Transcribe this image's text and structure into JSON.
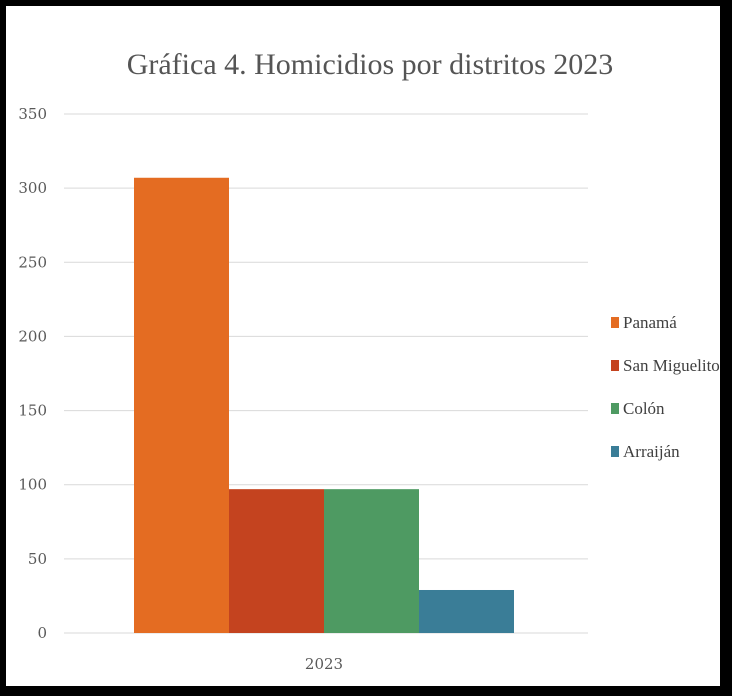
{
  "chart_data": {
    "type": "bar",
    "title": "Gráfica 4. Homicidios por distritos 2023",
    "categories": [
      "2023"
    ],
    "series": [
      {
        "name": "Panamá",
        "values": [
          307
        ],
        "color": "#e46c22"
      },
      {
        "name": "San Miguelito",
        "values": [
          97
        ],
        "color": "#c4431f"
      },
      {
        "name": "Colón",
        "values": [
          97
        ],
        "color": "#4e9a62"
      },
      {
        "name": "Arraiján",
        "values": [
          29
        ],
        "color": "#3a7d97"
      }
    ],
    "ylim": [
      0,
      350
    ],
    "yticks": [
      0,
      50,
      100,
      150,
      200,
      250,
      300,
      350
    ],
    "grid": true,
    "legend_position": "right",
    "xlabel": "",
    "ylabel": ""
  }
}
